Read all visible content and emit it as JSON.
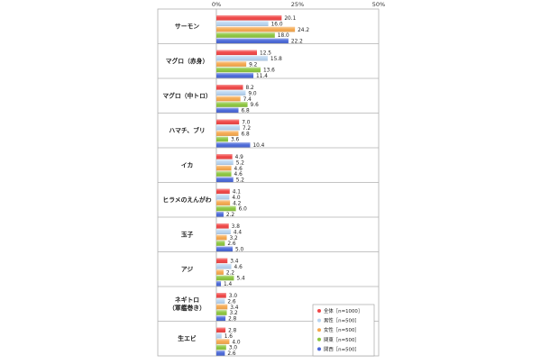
{
  "chart_data": {
    "type": "bar",
    "orientation": "horizontal",
    "title": "",
    "xlabel": "",
    "ylabel": "",
    "xlim": [
      0,
      50
    ],
    "x_ticks": [
      "0%",
      "25%",
      "50%"
    ],
    "grid": false,
    "legend_position": "bottom-right",
    "categories": [
      [
        "サーモン"
      ],
      [
        "マグロ（赤身）"
      ],
      [
        "マグロ（中トロ）"
      ],
      [
        "ハマチ、ブリ"
      ],
      [
        "イカ"
      ],
      [
        "ヒラメのえんがわ"
      ],
      [
        "玉子"
      ],
      [
        "アジ"
      ],
      [
        "ネギトロ",
        "（軍艦巻き）"
      ],
      [
        "生エビ"
      ]
    ],
    "series": [
      {
        "name": "全体［n=1000］",
        "color": "#f04646",
        "values": [
          20.1,
          12.5,
          8.2,
          7.0,
          4.9,
          4.1,
          3.8,
          3.4,
          3.0,
          2.8
        ]
      },
      {
        "name": "男性［n=500］",
        "color": "#b8d4f0",
        "values": [
          16.0,
          15.8,
          9.0,
          7.2,
          5.2,
          4.0,
          4.4,
          4.6,
          2.6,
          1.6
        ]
      },
      {
        "name": "女性［n=500］",
        "color": "#f5a84e",
        "values": [
          24.2,
          9.2,
          7.4,
          6.8,
          4.6,
          4.2,
          3.2,
          2.2,
          3.4,
          4.0
        ]
      },
      {
        "name": "関東［n=500］",
        "color": "#8cc63f",
        "values": [
          18.0,
          13.6,
          9.6,
          3.6,
          4.6,
          6.0,
          2.6,
          5.4,
          3.2,
          3.0
        ]
      },
      {
        "name": "関西［n=500］",
        "color": "#4a68d8",
        "values": [
          22.2,
          11.4,
          6.8,
          10.4,
          5.2,
          2.2,
          5.0,
          1.4,
          2.8,
          2.6
        ]
      }
    ]
  }
}
